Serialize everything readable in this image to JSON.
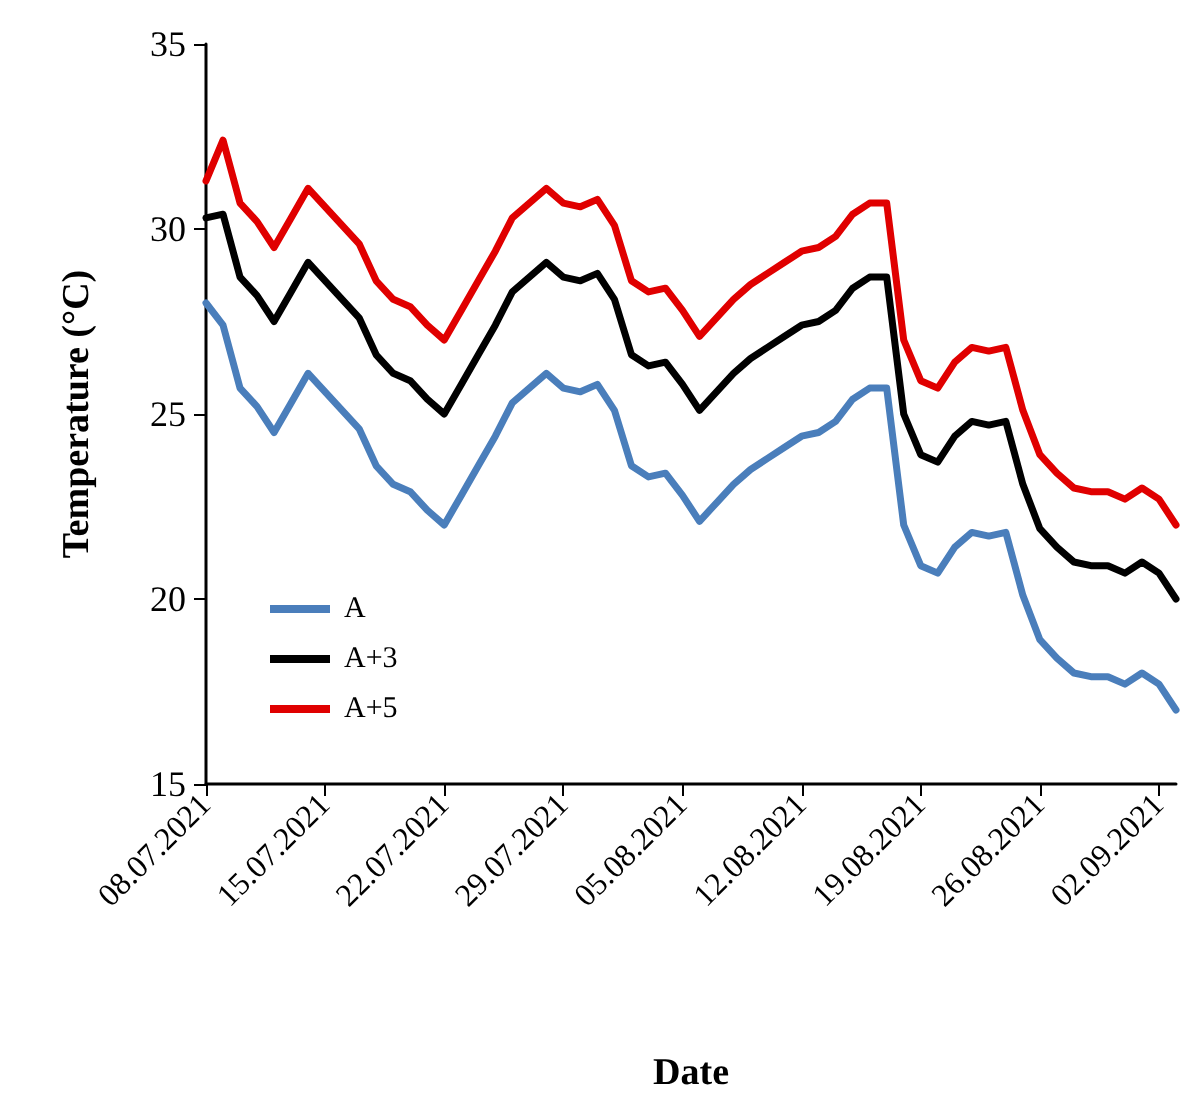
{
  "chart_data": {
    "type": "line",
    "xlabel": "Date",
    "ylabel": "Temperature (°C)",
    "x": [
      "2021-07-08",
      "2021-07-09",
      "2021-07-10",
      "2021-07-11",
      "2021-07-12",
      "2021-07-13",
      "2021-07-14",
      "2021-07-15",
      "2021-07-16",
      "2021-07-17",
      "2021-07-18",
      "2021-07-19",
      "2021-07-20",
      "2021-07-21",
      "2021-07-22",
      "2021-07-23",
      "2021-07-24",
      "2021-07-25",
      "2021-07-26",
      "2021-07-27",
      "2021-07-28",
      "2021-07-29",
      "2021-07-30",
      "2021-07-31",
      "2021-08-01",
      "2021-08-02",
      "2021-08-03",
      "2021-08-04",
      "2021-08-05",
      "2021-08-06",
      "2021-08-07",
      "2021-08-08",
      "2021-08-09",
      "2021-08-10",
      "2021-08-11",
      "2021-08-12",
      "2021-08-13",
      "2021-08-14",
      "2021-08-15",
      "2021-08-16",
      "2021-08-17",
      "2021-08-18",
      "2021-08-19",
      "2021-08-20",
      "2021-08-21",
      "2021-08-22",
      "2021-08-23",
      "2021-08-24",
      "2021-08-25",
      "2021-08-26",
      "2021-08-27",
      "2021-08-28",
      "2021-08-29",
      "2021-08-30",
      "2021-08-31",
      "2021-09-01",
      "2021-09-02",
      "2021-09-03"
    ],
    "series": [
      {
        "name": "A",
        "color": "#4a7ebb",
        "values": [
          28.0,
          27.4,
          25.7,
          25.2,
          24.5,
          25.3,
          26.1,
          25.6,
          25.1,
          24.6,
          23.6,
          23.1,
          22.9,
          22.4,
          22.0,
          22.8,
          23.6,
          24.4,
          25.3,
          25.7,
          26.1,
          25.7,
          25.6,
          25.8,
          25.1,
          23.6,
          23.3,
          23.4,
          22.8,
          22.1,
          22.6,
          23.1,
          23.5,
          23.8,
          24.1,
          24.4,
          24.5,
          24.8,
          25.4,
          25.7,
          25.7,
          22.0,
          20.9,
          20.7,
          21.4,
          21.8,
          21.7,
          21.8,
          20.1,
          18.9,
          18.4,
          18.0,
          17.9,
          17.9,
          17.7,
          18.0,
          17.7,
          17.0
        ]
      },
      {
        "name": "A+3",
        "color": "#000000",
        "values": [
          30.3,
          30.4,
          28.7,
          28.2,
          27.5,
          28.3,
          29.1,
          28.6,
          28.1,
          27.6,
          26.6,
          26.1,
          25.9,
          25.4,
          25.0,
          25.8,
          26.6,
          27.4,
          28.3,
          28.7,
          29.1,
          28.7,
          28.6,
          28.8,
          28.1,
          26.6,
          26.3,
          26.4,
          25.8,
          25.1,
          25.6,
          26.1,
          26.5,
          26.8,
          27.1,
          27.4,
          27.5,
          27.8,
          28.4,
          28.7,
          28.7,
          25.0,
          23.9,
          23.7,
          24.4,
          24.8,
          24.7,
          24.8,
          23.1,
          21.9,
          21.4,
          21.0,
          20.9,
          20.9,
          20.7,
          21.0,
          20.7,
          20.0
        ]
      },
      {
        "name": "A+5",
        "color": "#e00000",
        "values": [
          31.3,
          32.4,
          30.7,
          30.2,
          29.5,
          30.3,
          31.1,
          30.6,
          30.1,
          29.6,
          28.6,
          28.1,
          27.9,
          27.4,
          27.0,
          27.8,
          28.6,
          29.4,
          30.3,
          30.7,
          31.1,
          30.7,
          30.6,
          30.8,
          30.1,
          28.6,
          28.3,
          28.4,
          27.8,
          27.1,
          27.6,
          28.1,
          28.5,
          28.8,
          29.1,
          29.4,
          29.5,
          29.8,
          30.4,
          30.7,
          30.7,
          27.0,
          25.9,
          25.7,
          26.4,
          26.8,
          26.7,
          26.8,
          25.1,
          23.9,
          23.4,
          23.0,
          22.9,
          22.9,
          22.7,
          23.0,
          22.7,
          22.0
        ]
      }
    ],
    "xlim": [
      "2021-07-08",
      "2021-09-03"
    ],
    "xticks": [
      {
        "value": "2021-07-08",
        "label": "08.07.2021"
      },
      {
        "value": "2021-07-15",
        "label": "15.07.2021"
      },
      {
        "value": "2021-07-22",
        "label": "22.07.2021"
      },
      {
        "value": "2021-07-29",
        "label": "29.07.2021"
      },
      {
        "value": "2021-08-05",
        "label": "05.08.2021"
      },
      {
        "value": "2021-08-12",
        "label": "12.08.2021"
      },
      {
        "value": "2021-08-19",
        "label": "19.08.2021"
      },
      {
        "value": "2021-08-26",
        "label": "26.08.2021"
      },
      {
        "value": "2021-09-02",
        "label": "02.09.2021"
      }
    ],
    "ylim": [
      15,
      35
    ],
    "yticks": [
      15,
      20,
      25,
      30,
      35
    ],
    "grid": false,
    "legend": "bottom left",
    "marker": "none",
    "line_style": "solid"
  }
}
